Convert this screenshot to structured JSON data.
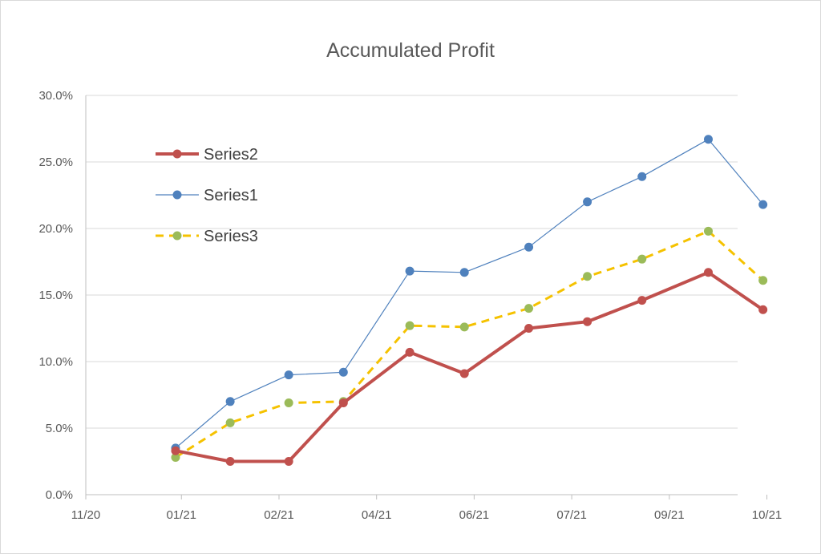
{
  "chart_data": {
    "type": "line",
    "title": "Accumulated Profit",
    "xlabel": "",
    "ylabel": "",
    "x_axis_kind": "date",
    "x_range": [
      "2020-11-15",
      "2021-10-15"
    ],
    "x_ticks": [
      {
        "date": "2020-11-15",
        "label": "11/20"
      },
      {
        "date": "2021-01-03",
        "label": "01/21"
      },
      {
        "date": "2021-02-22",
        "label": "02/21"
      },
      {
        "date": "2021-04-13",
        "label": "04/21"
      },
      {
        "date": "2021-06-02",
        "label": "06/21"
      },
      {
        "date": "2021-07-22",
        "label": "07/21"
      },
      {
        "date": "2021-09-10",
        "label": "09/21"
      },
      {
        "date": "2021-10-30",
        "label": "10/21"
      }
    ],
    "ylim": [
      0,
      0.3
    ],
    "y_ticks": [
      {
        "value": 0.0,
        "label": "0.0%"
      },
      {
        "value": 0.05,
        "label": "5.0%"
      },
      {
        "value": 0.1,
        "label": "10.0%"
      },
      {
        "value": 0.15,
        "label": "15.0%"
      },
      {
        "value": 0.2,
        "label": "20.0%"
      },
      {
        "value": 0.25,
        "label": "25.0%"
      },
      {
        "value": 0.3,
        "label": "30.0%"
      }
    ],
    "grid": "horizontal",
    "legend_position": "top-left inside plot",
    "x": [
      "2020-12-31",
      "2021-01-28",
      "2021-02-27",
      "2021-03-27",
      "2021-04-30",
      "2021-05-28",
      "2021-06-30",
      "2021-07-30",
      "2021-08-27",
      "2021-09-30",
      "2021-10-28"
    ],
    "series": [
      {
        "name": "Series2",
        "color": "#c0504d",
        "line_style": "solid",
        "line_width": 4,
        "marker_color": "#c0504d",
        "values": [
          0.033,
          0.025,
          0.025,
          0.069,
          0.107,
          0.091,
          0.125,
          0.13,
          0.146,
          0.167,
          0.139
        ]
      },
      {
        "name": "Series1",
        "color": "#4f81bd",
        "line_style": "solid",
        "line_width": 1.2,
        "marker_color": "#4f81bd",
        "values": [
          0.035,
          0.07,
          0.09,
          0.092,
          0.168,
          0.167,
          0.186,
          0.22,
          0.239,
          0.267,
          0.218
        ]
      },
      {
        "name": "Series3",
        "color": "#f5c200",
        "line_style": "dashed",
        "line_width": 3,
        "marker_color": "#9bbb59",
        "values": [
          0.028,
          0.054,
          0.069,
          0.07,
          0.127,
          0.126,
          0.14,
          0.164,
          0.177,
          0.198,
          0.161
        ]
      }
    ]
  }
}
